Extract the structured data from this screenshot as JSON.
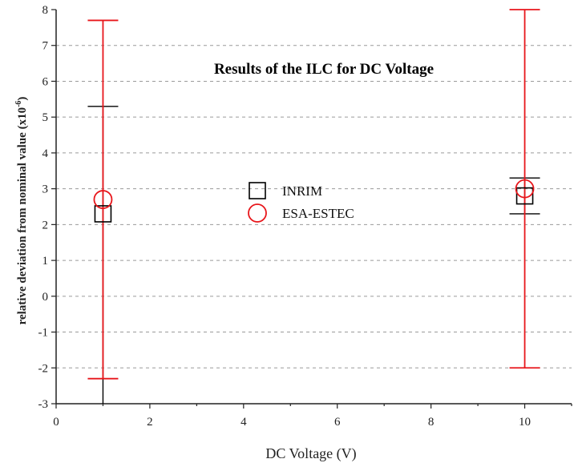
{
  "chart_data": {
    "type": "scatter",
    "title": "Results of the ILC for DC Voltage",
    "xlabel": "DC Voltage (V)",
    "ylabel": "relative deviation from nominal value (x10",
    "ylabel_exp": "-6",
    "ylabel_close": ")",
    "xlim": [
      0,
      11
    ],
    "ylim": [
      -3,
      8
    ],
    "xticks": [
      0,
      2,
      4,
      6,
      8,
      10
    ],
    "yticks": [
      -3,
      -2,
      -1,
      0,
      1,
      2,
      3,
      4,
      5,
      6,
      7,
      8
    ],
    "grid": "horizontal dashed",
    "legend_position": "center",
    "series": [
      {
        "name": "INRIM",
        "marker": "square",
        "color": "#000000",
        "points": [
          {
            "x": 1,
            "y": 2.3,
            "err_low": -3.0,
            "err_high": 5.3
          },
          {
            "x": 10,
            "y": 2.8,
            "err_low": 2.3,
            "err_high": 3.3
          }
        ]
      },
      {
        "name": "ESA-ESTEC",
        "marker": "circle",
        "color": "#e8161b",
        "points": [
          {
            "x": 1,
            "y": 2.7,
            "err_low": -2.3,
            "err_high": 7.7
          },
          {
            "x": 10,
            "y": 3.0,
            "err_low": -2.0,
            "err_high": 8.0
          }
        ]
      }
    ]
  }
}
